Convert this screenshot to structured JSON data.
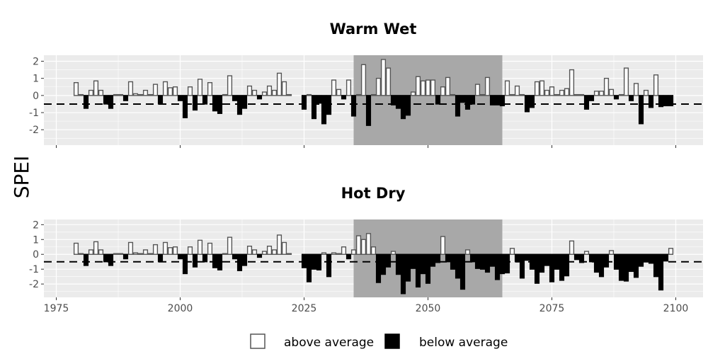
{
  "ylabel": "SPEI",
  "colors": {
    "panel_bg": "#ebebeb",
    "grid": "#ffffff",
    "highlight": "#a8a8a8",
    "above_fill": "#ffffff",
    "above_stroke": "#555555",
    "below_fill": "#000000",
    "threshold_line": "#000000"
  },
  "x_ticks": [
    "1975",
    "2000",
    "2025",
    "2050",
    "2075",
    "2100"
  ],
  "legend": {
    "items": [
      {
        "label": "above average",
        "fill": "#ffffff",
        "stroke": "#555555"
      },
      {
        "label": "below average",
        "fill": "#000000",
        "stroke": "#000000"
      }
    ]
  },
  "chart_data": [
    {
      "type": "bar",
      "title": "Warm Wet",
      "xlim": [
        1972.5,
        2105.5
      ],
      "ylim": [
        -2.9,
        2.35
      ],
      "y_ticks": [
        2,
        1,
        0,
        -1,
        -2
      ],
      "threshold": -0.5,
      "highlight_period": [
        2035,
        2065
      ],
      "grid": true,
      "x": [
        1979,
        1980,
        1981,
        1982,
        1983,
        1984,
        1985,
        1986,
        1987,
        1988,
        1989,
        1990,
        1991,
        1992,
        1993,
        1994,
        1995,
        1996,
        1997,
        1998,
        1999,
        2000,
        2001,
        2002,
        2003,
        2004,
        2005,
        2006,
        2007,
        2008,
        2009,
        2010,
        2011,
        2012,
        2013,
        2014,
        2015,
        2016,
        2017,
        2018,
        2019,
        2020,
        2021,
        2022,
        2025,
        2026,
        2027,
        2028,
        2029,
        2030,
        2031,
        2032,
        2033,
        2034,
        2035,
        2036,
        2037,
        2038,
        2039,
        2040,
        2041,
        2042,
        2043,
        2044,
        2045,
        2046,
        2047,
        2048,
        2049,
        2050,
        2051,
        2052,
        2053,
        2054,
        2055,
        2056,
        2057,
        2058,
        2059,
        2060,
        2061,
        2062,
        2063,
        2064,
        2065,
        2066,
        2067,
        2068,
        2069,
        2070,
        2071,
        2072,
        2073,
        2074,
        2075,
        2076,
        2077,
        2078,
        2079,
        2080,
        2081,
        2082,
        2083,
        2084,
        2085,
        2086,
        2087,
        2088,
        2089,
        2090,
        2091,
        2092,
        2093,
        2094,
        2095,
        2096,
        2097,
        2098,
        2099
      ],
      "values": [
        0.75,
        0.05,
        -0.75,
        0.3,
        0.85,
        0.3,
        -0.5,
        -0.75,
        0.05,
        0.05,
        -0.3,
        0.8,
        0.1,
        0.05,
        0.3,
        0.05,
        0.65,
        -0.5,
        0.8,
        0.45,
        0.5,
        -0.3,
        -1.3,
        0.5,
        -0.85,
        0.95,
        -0.5,
        0.75,
        -0.9,
        -1.05,
        0.05,
        1.15,
        -0.3,
        -1.1,
        -0.75,
        0.55,
        0.3,
        -0.2,
        0.2,
        0.55,
        0.3,
        1.3,
        0.8,
        0.05,
        -0.8,
        0.05,
        -1.35,
        -0.45,
        -1.65,
        -1.1,
        0.9,
        0.35,
        -0.2,
        0.9,
        -1.2,
        0.05,
        1.8,
        -1.75,
        0.05,
        1.0,
        2.1,
        1.6,
        -0.55,
        -0.75,
        -1.35,
        -1.15,
        0.2,
        1.1,
        0.85,
        0.9,
        0.9,
        -0.5,
        0.5,
        1.05,
        0.05,
        -1.2,
        -0.4,
        -0.8,
        -0.5,
        0.65,
        0.05,
        1.05,
        -0.55,
        -0.55,
        -0.6,
        0.85,
        0.05,
        0.55,
        0.05,
        -0.95,
        -0.7,
        0.8,
        0.85,
        0.3,
        0.5,
        0.05,
        0.3,
        0.4,
        1.5,
        0.05,
        0.05,
        -0.8,
        -0.3,
        0.25,
        0.25,
        1.0,
        0.35,
        -0.2,
        0.05,
        1.6,
        -0.3,
        0.7,
        -1.65,
        0.3,
        -0.7,
        1.2,
        -0.65,
        -0.6,
        -0.6
      ]
    },
    {
      "type": "bar",
      "title": "Hot Dry",
      "xlim": [
        1972.5,
        2105.5
      ],
      "ylim": [
        -2.9,
        2.35
      ],
      "y_ticks": [
        2,
        1,
        0,
        -1,
        -2
      ],
      "threshold": -0.5,
      "highlight_period": [
        2035,
        2065
      ],
      "grid": true,
      "x": [
        1979,
        1980,
        1981,
        1982,
        1983,
        1984,
        1985,
        1986,
        1987,
        1988,
        1989,
        1990,
        1991,
        1992,
        1993,
        1994,
        1995,
        1996,
        1997,
        1998,
        1999,
        2000,
        2001,
        2002,
        2003,
        2004,
        2005,
        2006,
        2007,
        2008,
        2009,
        2010,
        2011,
        2012,
        2013,
        2014,
        2015,
        2016,
        2017,
        2018,
        2019,
        2020,
        2021,
        2022,
        2025,
        2026,
        2027,
        2028,
        2029,
        2030,
        2031,
        2032,
        2033,
        2034,
        2035,
        2036,
        2037,
        2038,
        2039,
        2040,
        2041,
        2042,
        2043,
        2044,
        2045,
        2046,
        2047,
        2048,
        2049,
        2050,
        2051,
        2052,
        2053,
        2054,
        2055,
        2056,
        2057,
        2058,
        2059,
        2060,
        2061,
        2062,
        2063,
        2064,
        2065,
        2066,
        2067,
        2068,
        2069,
        2070,
        2071,
        2072,
        2073,
        2074,
        2075,
        2076,
        2077,
        2078,
        2079,
        2080,
        2081,
        2082,
        2083,
        2084,
        2085,
        2086,
        2087,
        2088,
        2089,
        2090,
        2091,
        2092,
        2093,
        2094,
        2095,
        2096,
        2097,
        2098,
        2099
      ],
      "values": [
        0.75,
        0.05,
        -0.75,
        0.3,
        0.85,
        0.3,
        -0.5,
        -0.75,
        0.05,
        0.05,
        -0.3,
        0.8,
        0.1,
        0.05,
        0.3,
        0.05,
        0.65,
        -0.5,
        0.8,
        0.45,
        0.5,
        -0.3,
        -1.3,
        0.5,
        -0.85,
        0.95,
        -0.5,
        0.75,
        -0.9,
        -1.05,
        0.05,
        1.15,
        -0.3,
        -1.1,
        -0.75,
        0.55,
        0.3,
        -0.2,
        0.2,
        0.55,
        0.3,
        1.3,
        0.8,
        0.05,
        -0.9,
        -1.85,
        -1.0,
        -1.05,
        0.1,
        -1.5,
        0.1,
        0.05,
        0.5,
        -0.3,
        0.3,
        1.25,
        1.0,
        1.4,
        0.5,
        -1.9,
        -1.35,
        -0.85,
        0.2,
        -1.35,
        -2.65,
        -1.8,
        -0.95,
        -2.2,
        -1.3,
        -1.95,
        -0.8,
        -0.55,
        1.2,
        -0.5,
        -1.0,
        -1.6,
        -2.35,
        0.3,
        -0.5,
        -0.95,
        -1.0,
        -1.2,
        -0.8,
        -1.7,
        -1.3,
        -1.25,
        0.4,
        -0.5,
        -1.6,
        -0.4,
        -1.0,
        -1.95,
        -1.2,
        -0.75,
        -1.85,
        -1.0,
        -1.75,
        -1.45,
        0.9,
        -0.35,
        -0.55,
        0.2,
        -0.5,
        -1.2,
        -1.5,
        -0.85,
        0.25,
        -1.0,
        -1.75,
        -1.8,
        -1.15,
        -1.55,
        -0.8,
        -0.45,
        -0.6,
        -1.5,
        -2.4,
        -0.45,
        0.4
      ]
    }
  ]
}
